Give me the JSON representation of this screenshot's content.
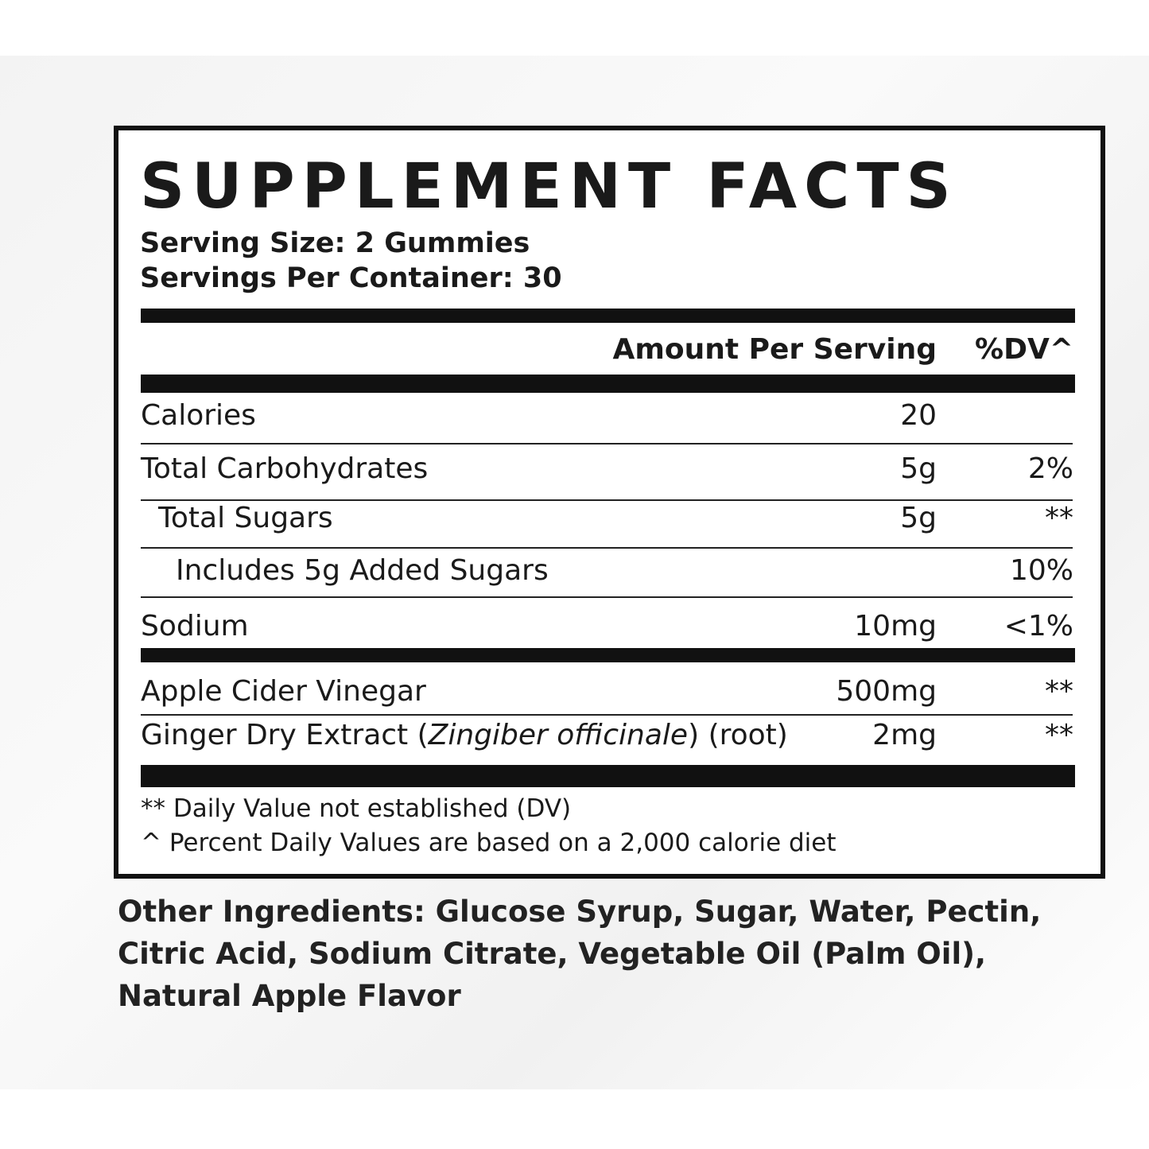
{
  "title": "SUPPLEMENT FACTS",
  "serving_size": "Serving Size: 2 Gummies",
  "servings_per_container": "Servings Per Container: 30",
  "header": {
    "amount": "Amount Per Serving",
    "dv": "%DV^"
  },
  "rows": [
    {
      "name": "Calories",
      "amount": "20"
    },
    {
      "name": "Total Carbohydrates",
      "amount": "5g",
      "dv": "2%"
    },
    {
      "name": "Total Sugars",
      "amount": "5g",
      "dv": "**"
    },
    {
      "name": "Includes 5g Added Sugars",
      "dv": "10%"
    },
    {
      "name": "Sodium",
      "amount": "10mg",
      "dv": "<1%"
    },
    {
      "name": "Apple Cider Vinegar",
      "amount": "500mg",
      "dv": "**"
    },
    {
      "name": "Ginger Dry Extract (",
      "name_italic": "Zingiber officinale",
      "name_suffix": ") (root)",
      "amount": "2mg",
      "dv": "**"
    }
  ],
  "footnotes": [
    "** Daily Value not established (DV)",
    "^ Percent Daily Values are based on a 2,000 calorie diet"
  ],
  "other_ingredients": {
    "label": "Other Ingredients:",
    "text": "Glucose Syrup, Sugar, Water, Pectin, Citric Acid, Sodium Citrate, Vegetable Oil (Palm Oil), Natural Apple Flavor"
  }
}
